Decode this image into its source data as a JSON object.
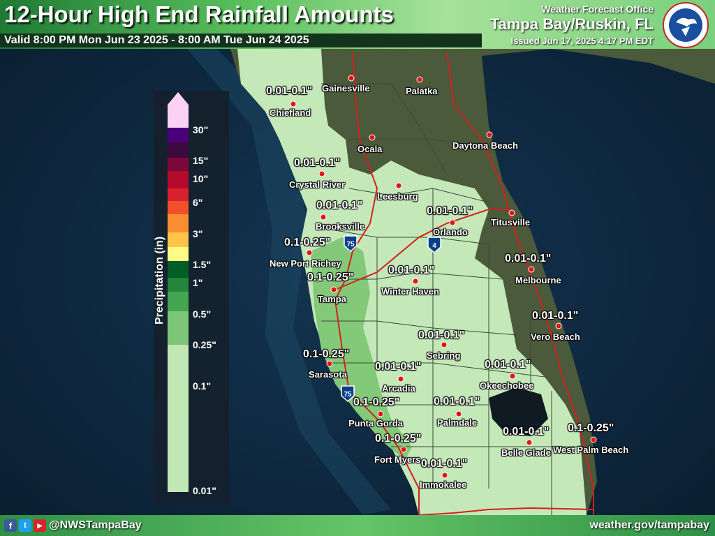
{
  "header": {
    "title": "12-Hour High End Rainfall Amounts",
    "valid": "Valid 8:00 PM Mon Jun 23 2025 - 8:00 AM Tue Jun 24 2025",
    "office_label": "Weather Forecast Office",
    "office": "Tampa Bay/Ruskin, FL",
    "issued": "Issued Jun 17, 2025 4:17 PM EDT",
    "logo_icon": "nws-logo-icon"
  },
  "footer": {
    "social_icons": [
      "facebook-icon",
      "twitter-icon",
      "youtube-icon"
    ],
    "handle": "@NWSTampaBay",
    "website": "weather.gov/tampabay"
  },
  "legend": {
    "title": "Precipitation (in)",
    "ticks": [
      "30\"",
      "15\"",
      "10\"",
      "6\"",
      "3\"",
      "1.5\"",
      "1\"",
      "0.5\"",
      "0.25\"",
      "0.1\"",
      "0.01\""
    ],
    "colors": [
      "#fbd2f4",
      "#4b007a",
      "#3d0a3f",
      "#7a0838",
      "#b20b2b",
      "#d8212c",
      "#f2502c",
      "#f88d32",
      "#fdc548",
      "#fefa86",
      "#005e26",
      "#23863a",
      "#43a650",
      "#7dc677",
      "#c1e7b5"
    ]
  },
  "map": {
    "highways": [
      "75",
      "75",
      "4"
    ],
    "cities": [
      {
        "name": "Gainesville",
        "amount": ""
      },
      {
        "name": "Palatka",
        "amount": ""
      },
      {
        "name": "Chiefland",
        "amount": "0.01-0.1\""
      },
      {
        "name": "Ocala",
        "amount": ""
      },
      {
        "name": "Daytona Beach",
        "amount": ""
      },
      {
        "name": "Crystal River",
        "amount": "0.01-0.1\""
      },
      {
        "name": "Leesburg",
        "amount": ""
      },
      {
        "name": "Brooksville",
        "amount": "0.01-0.1\""
      },
      {
        "name": "Orlando",
        "amount": "0.01-0.1\""
      },
      {
        "name": "Titusville",
        "amount": ""
      },
      {
        "name": "New Port Richey",
        "amount": "0.1-0.25\""
      },
      {
        "name": "Tampa",
        "amount": "0.1-0.25\""
      },
      {
        "name": "Winter Haven",
        "amount": "0.01-0.1\""
      },
      {
        "name": "Melbourne",
        "amount": "0.01-0.1\""
      },
      {
        "name": "Vero Beach",
        "amount": "0.01-0.1\""
      },
      {
        "name": "Sebring",
        "amount": "0.01-0.1\""
      },
      {
        "name": "Sarasota",
        "amount": "0.1-0.25\""
      },
      {
        "name": "Arcadia",
        "amount": "0.01-0.1\""
      },
      {
        "name": "Okeechobee",
        "amount": "0.01-0.1\""
      },
      {
        "name": "Punta Gorda",
        "amount": "0.1-0.25\""
      },
      {
        "name": "Palmdale",
        "amount": "0.01-0.1\""
      },
      {
        "name": "Belle Glade",
        "amount": "0.01-0.1\""
      },
      {
        "name": "West Palm Beach",
        "amount": "0.1-0.25\""
      },
      {
        "name": "Fort Myers",
        "amount": "0.1-0.25\""
      },
      {
        "name": "Immokalee",
        "amount": "0.01-0.1\""
      }
    ]
  }
}
